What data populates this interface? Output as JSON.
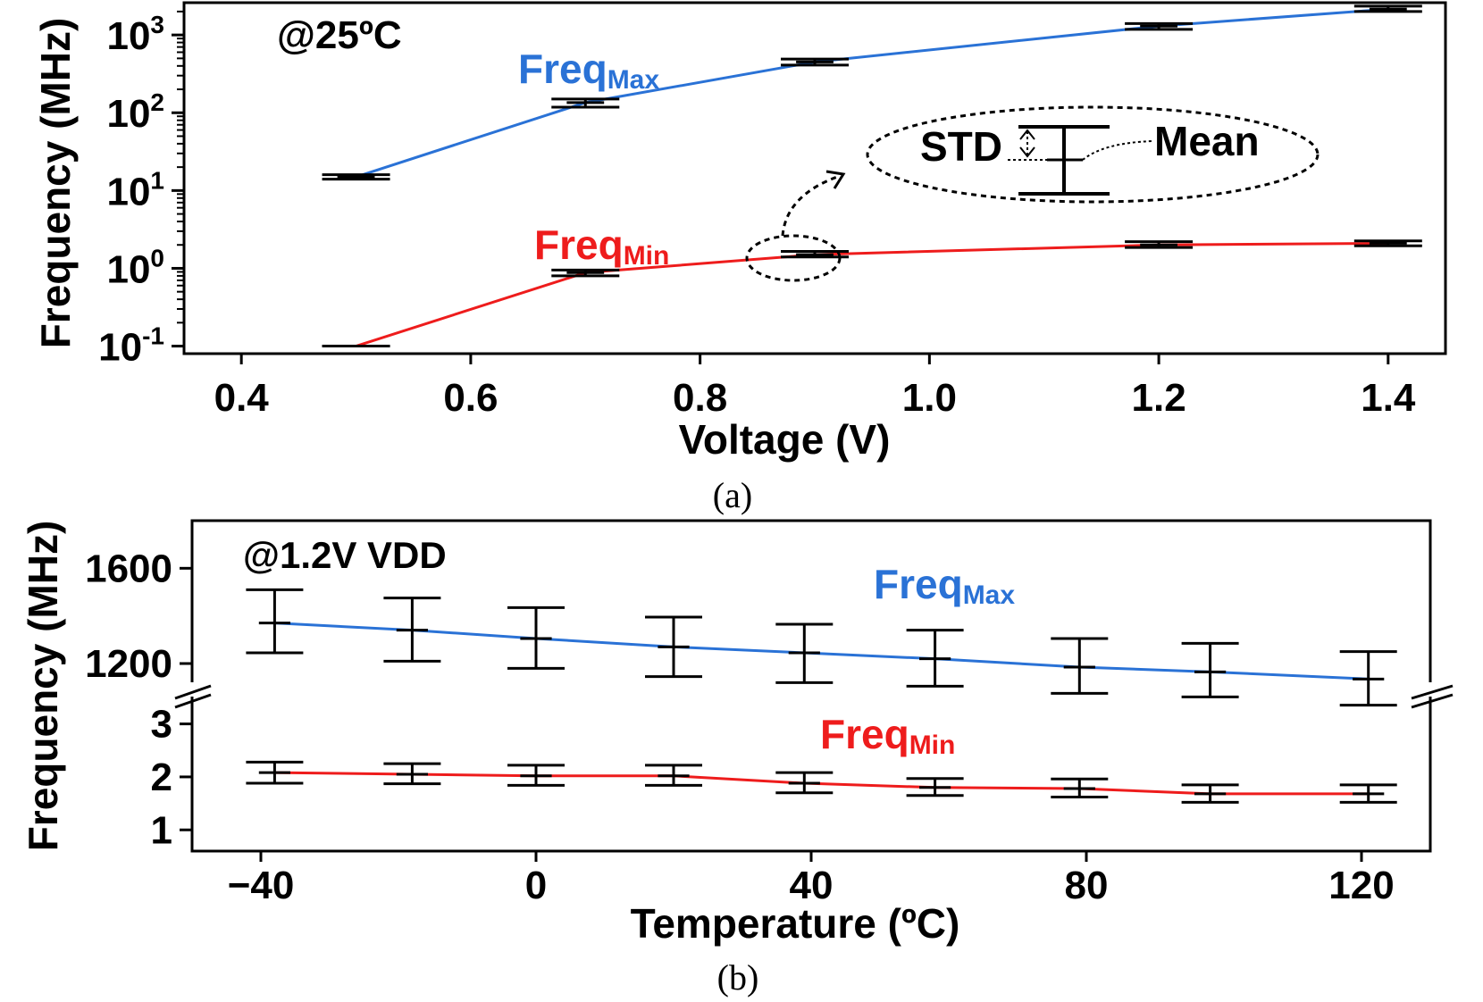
{
  "colors": {
    "max": "#2a72d6",
    "min": "#ee1c1c",
    "axis": "#000000"
  },
  "chart_data": [
    {
      "type": "line",
      "caption": "(a)",
      "condition_label": "@25ºC",
      "xlabel": "Voltage (V)",
      "ylabel": "Frequency (MHz)",
      "xlim": [
        0.35,
        1.45
      ],
      "ylim": [
        0.08,
        2600
      ],
      "yscale": "log",
      "x_ticks": [
        "0.4",
        "0.6",
        "0.8",
        "1.0",
        "1.2",
        "1.4"
      ],
      "y_ticks": [
        {
          "value": 0.1,
          "base": "10",
          "exp": "-1"
        },
        {
          "value": 1,
          "base": "10",
          "exp": "0"
        },
        {
          "value": 10,
          "base": "10",
          "exp": "1"
        },
        {
          "value": 100,
          "base": "10",
          "exp": "2"
        },
        {
          "value": 1000,
          "base": "10",
          "exp": "3"
        }
      ],
      "x": [
        0.5,
        0.7,
        0.9,
        1.2,
        1.4
      ],
      "series": [
        {
          "name_main": "Freq",
          "name_sub": "Max",
          "color": "#2a72d6",
          "values": [
            15,
            135,
            450,
            1300,
            2150
          ],
          "err_low": [
            14,
            118,
            410,
            1180,
            2000
          ],
          "err_high": [
            16,
            150,
            490,
            1400,
            2350
          ]
        },
        {
          "name_main": "Freq",
          "name_sub": "Min",
          "color": "#ee1c1c",
          "values": [
            0.1,
            0.88,
            1.5,
            2.0,
            2.1
          ],
          "err_low": [
            0.1,
            0.8,
            1.4,
            1.85,
            1.95
          ],
          "err_high": [
            0.1,
            0.95,
            1.65,
            2.2,
            2.25
          ]
        }
      ],
      "legend_inset": {
        "std_label": "STD",
        "mean_label": "Mean"
      }
    },
    {
      "type": "line",
      "caption": "(b)",
      "condition_label": "@1.2V VDD",
      "xlabel": "Temperature (ºC)",
      "ylabel": "Frequency (MHz)",
      "xlim": [
        -50,
        130
      ],
      "broken_axis": true,
      "upper_ylim": [
        1080,
        1800
      ],
      "lower_ylim": [
        0.6,
        3.6
      ],
      "x_ticks": [
        "−40",
        "0",
        "40",
        "80",
        "120"
      ],
      "x_tick_values": [
        -40,
        0,
        40,
        80,
        120
      ],
      "upper_y_ticks": [
        1200,
        1600
      ],
      "lower_y_ticks": [
        1,
        2,
        3
      ],
      "x": [
        -38,
        -18,
        0,
        20,
        39,
        58,
        79,
        98,
        121
      ],
      "series": [
        {
          "name_main": "Freq",
          "name_sub": "Max",
          "color": "#2a72d6",
          "values": [
            1370,
            1340,
            1305,
            1270,
            1245,
            1220,
            1185,
            1165,
            1135
          ],
          "err_low": [
            1245,
            1210,
            1180,
            1145,
            1120,
            1105,
            1075,
            1060,
            1025
          ],
          "err_high": [
            1510,
            1475,
            1435,
            1395,
            1365,
            1340,
            1305,
            1285,
            1250
          ]
        },
        {
          "name_main": "Freq",
          "name_sub": "Min",
          "color": "#ee1c1c",
          "values": [
            2.08,
            2.05,
            2.02,
            2.02,
            1.88,
            1.8,
            1.78,
            1.68,
            1.68
          ],
          "err_low": [
            1.88,
            1.87,
            1.84,
            1.84,
            1.7,
            1.65,
            1.62,
            1.52,
            1.52
          ],
          "err_high": [
            2.28,
            2.25,
            2.22,
            2.22,
            2.08,
            1.97,
            1.96,
            1.85,
            1.85
          ]
        }
      ]
    }
  ]
}
